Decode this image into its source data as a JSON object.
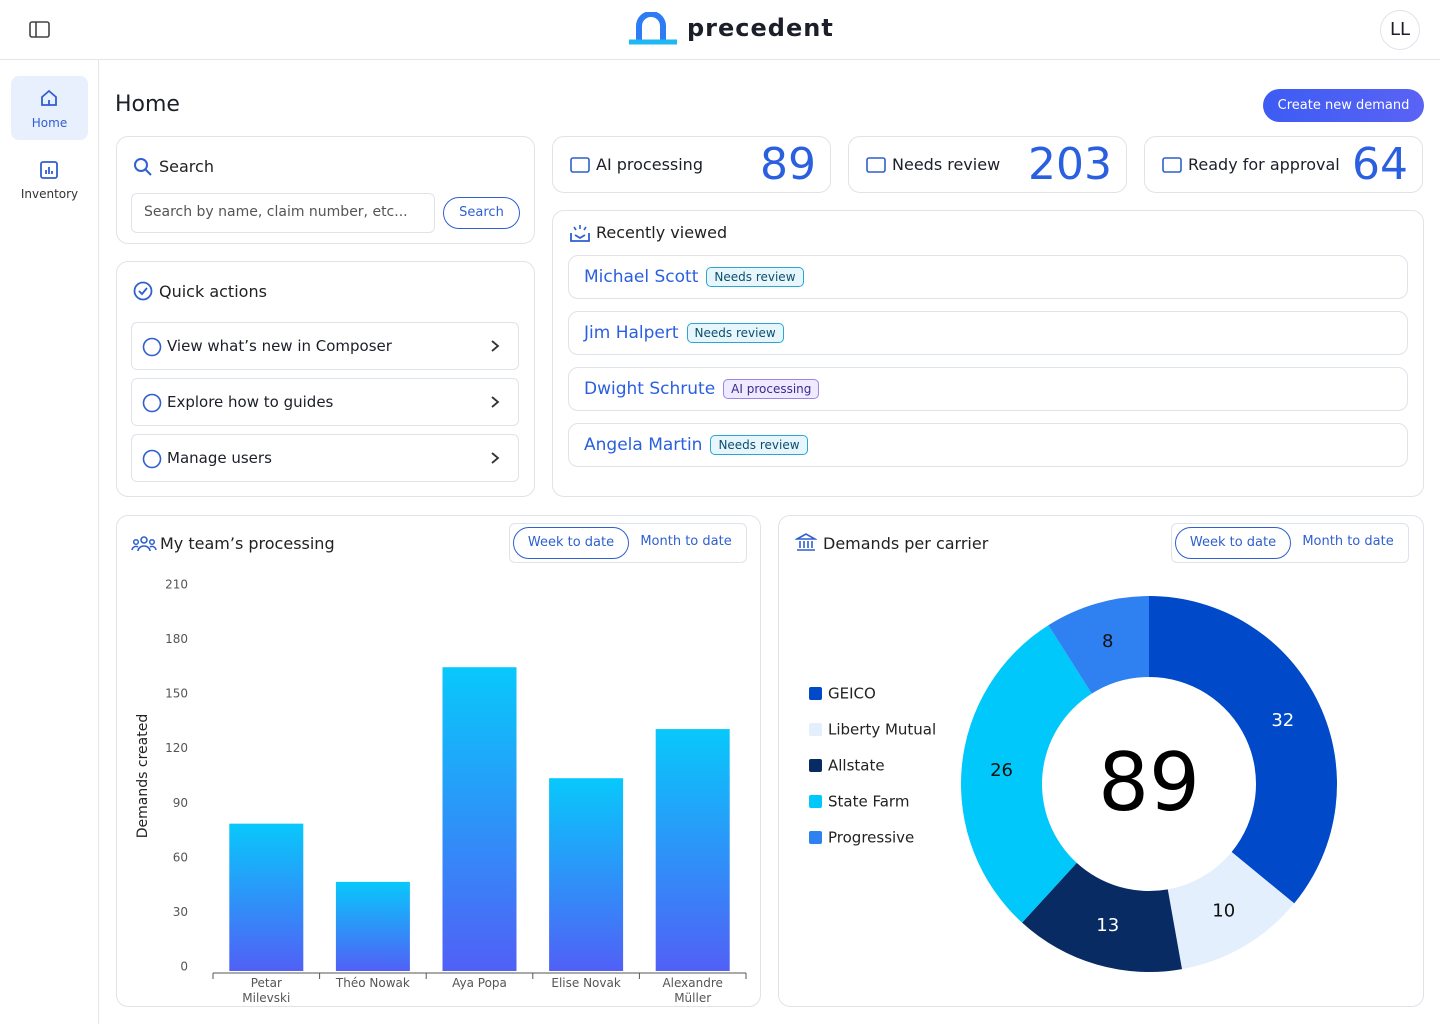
{
  "header": {
    "logo": "precedent",
    "avatar": "LL"
  },
  "nav": [
    {
      "label": "Home"
    },
    {
      "label": "Inventory"
    }
  ],
  "page": {
    "title": "Home",
    "create_button": "Create new demand"
  },
  "search": {
    "title": "Search",
    "placeholder": "Search by name, claim number, etc...",
    "button": "Search"
  },
  "quick_actions": {
    "title": "Quick actions",
    "items": [
      "View what’s new in Composer",
      "Explore how to guides",
      "Manage users"
    ]
  },
  "stats": [
    {
      "label": "AI processing",
      "value": 89
    },
    {
      "label": "Needs review",
      "value": 203
    },
    {
      "label": "Ready for approval",
      "value": 64
    }
  ],
  "recently_viewed": {
    "title": "Recently viewed",
    "items": [
      {
        "name": "Michael Scott",
        "status": "Needs review"
      },
      {
        "name": "Jim Halpert",
        "status": "Needs review"
      },
      {
        "name": "Dwight Schrute",
        "status": "AI processing"
      },
      {
        "name": "Angela Martin",
        "status": "Needs review"
      }
    ]
  },
  "panels": [
    {
      "toggles": [
        "Week to date",
        "Month to date"
      ]
    },
    {
      "toggles": [
        "Week to date",
        "Month to date"
      ]
    }
  ],
  "chart_data": [
    {
      "type": "bar",
      "title": "My team’s processing",
      "y_label": "Demands created",
      "categories": [
        "Petar Milevski",
        "Théo Nowak",
        "Aya Popa",
        "Elise Novak",
        "Alexandre Müller"
      ],
      "values": [
        81,
        49,
        167,
        106,
        133
      ],
      "gradient": [
        "#08c8fb",
        "#5160f6"
      ],
      "ylim": [
        0,
        210
      ],
      "yticks": [
        0,
        30,
        60,
        90,
        120,
        150,
        180,
        210
      ],
      "grid": false
    },
    {
      "type": "donut",
      "title": "Demands per carrier",
      "center_label": 89,
      "categories": [
        "GEICO",
        "Liberty Mutual",
        "Allstate",
        "State Farm",
        "Progressive"
      ],
      "values": [
        32,
        10,
        13,
        26,
        8
      ],
      "colors": [
        "#0049c9",
        "#e3effc",
        "#082b64",
        "#00c8fa",
        "#2f80f1"
      ],
      "legend": "left"
    }
  ]
}
